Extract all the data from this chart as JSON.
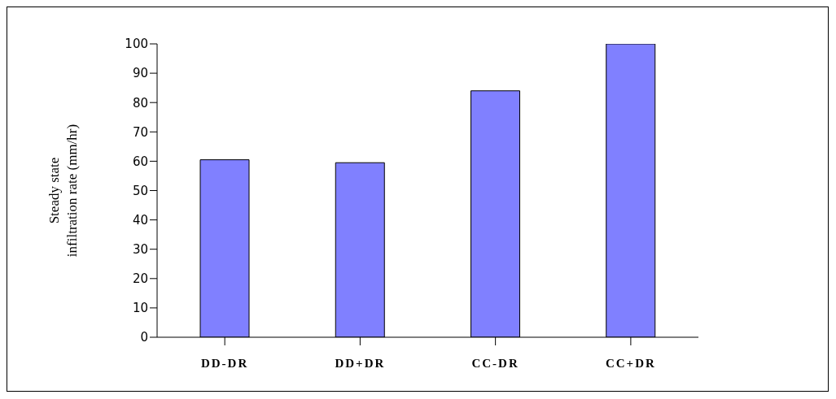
{
  "chart_data": {
    "type": "bar",
    "ylabel": "Steady state\ninfiltration rate (mm/hr)",
    "categories": [
      "DD-DR",
      "DD+DR",
      "CC-DR",
      "CC+DR"
    ],
    "values": [
      60.5,
      59.5,
      84,
      100
    ],
    "color": "#8080ff",
    "ylim": [
      0,
      100
    ],
    "yticks": [
      0,
      10,
      20,
      30,
      40,
      50,
      60,
      70,
      80,
      90,
      100
    ],
    "grid": false
  }
}
